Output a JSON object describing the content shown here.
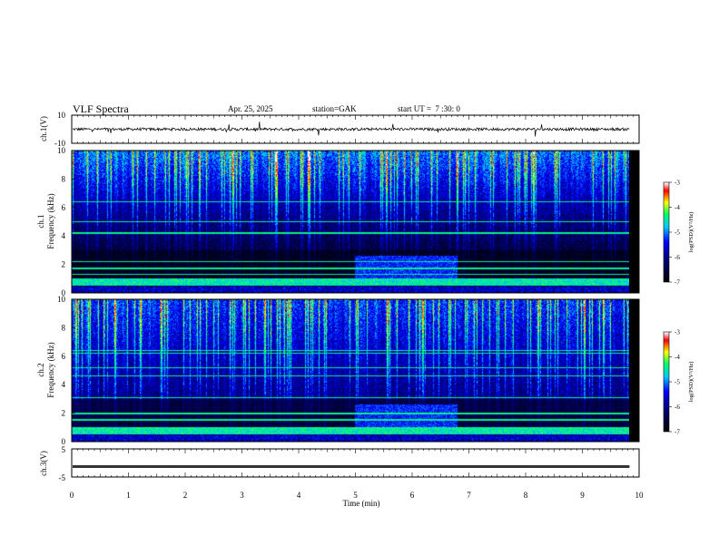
{
  "header": {
    "title": "VLF Spectra",
    "date": "Apr. 25, 2025",
    "station": "station=GAK",
    "start_ut": "start UT =  7 :30: 0"
  },
  "colors": {
    "waveform": "#000000",
    "colormap": [
      "#000000",
      "#00008b",
      "#0000ff",
      "#00c8ff",
      "#00ff64",
      "#ffff00",
      "#ff0000",
      "#ffffff"
    ]
  },
  "chart_data": [
    {
      "type": "line",
      "name": "ch1-waveform",
      "ylabel": "ch.1(V)",
      "ylim": [
        -10,
        10
      ],
      "yticks": [
        "10",
        "-10"
      ],
      "x_range_min": [
        0,
        10
      ],
      "trace_level_v": 0,
      "noise_amplitude_v": 2
    },
    {
      "type": "heatmap",
      "name": "ch1-spectrogram",
      "ylabel": "ch.1\nFrequency (kHz)",
      "ylim": [
        0,
        10
      ],
      "yticks": [
        "0",
        "2",
        "4",
        "6",
        "8",
        "10"
      ],
      "x_range_min": [
        0,
        9.8
      ],
      "colorbar": {
        "label": "log(PSD)(V²/Hz)",
        "range": [
          -7,
          -3
        ],
        "ticks": [
          "-3",
          "-4",
          "-5",
          "-6",
          "-7"
        ]
      },
      "noise_band_khz": [
        0.5,
        1.0
      ],
      "low_activity_interval_min": [
        5.0,
        6.8
      ]
    },
    {
      "type": "heatmap",
      "name": "ch2-spectrogram",
      "ylabel": "ch.2\nFrequency (kHz)",
      "ylim": [
        0,
        10
      ],
      "yticks": [
        "0",
        "2",
        "4",
        "6",
        "8",
        "10"
      ],
      "x_range_min": [
        0,
        9.8
      ],
      "colorbar": {
        "label": "log(PSD)(V²/Hz)",
        "range": [
          -7,
          -3
        ],
        "ticks": [
          "-3",
          "-4",
          "-5",
          "-6",
          "-7"
        ]
      },
      "noise_band_khz": [
        0.5,
        1.0
      ],
      "low_activity_interval_min": [
        5.0,
        6.8
      ]
    },
    {
      "type": "line",
      "name": "ch3-waveform",
      "ylabel": "ch.3(V)",
      "ylim": [
        -5,
        5
      ],
      "yticks": [
        "5",
        "-5"
      ],
      "x_range_min": [
        0,
        10
      ],
      "trace_level_v": -1.3
    }
  ],
  "xaxis": {
    "label": "Time (min)",
    "ticks": [
      "0",
      "1",
      "2",
      "3",
      "4",
      "5",
      "6",
      "7",
      "8",
      "9",
      "10"
    ]
  }
}
